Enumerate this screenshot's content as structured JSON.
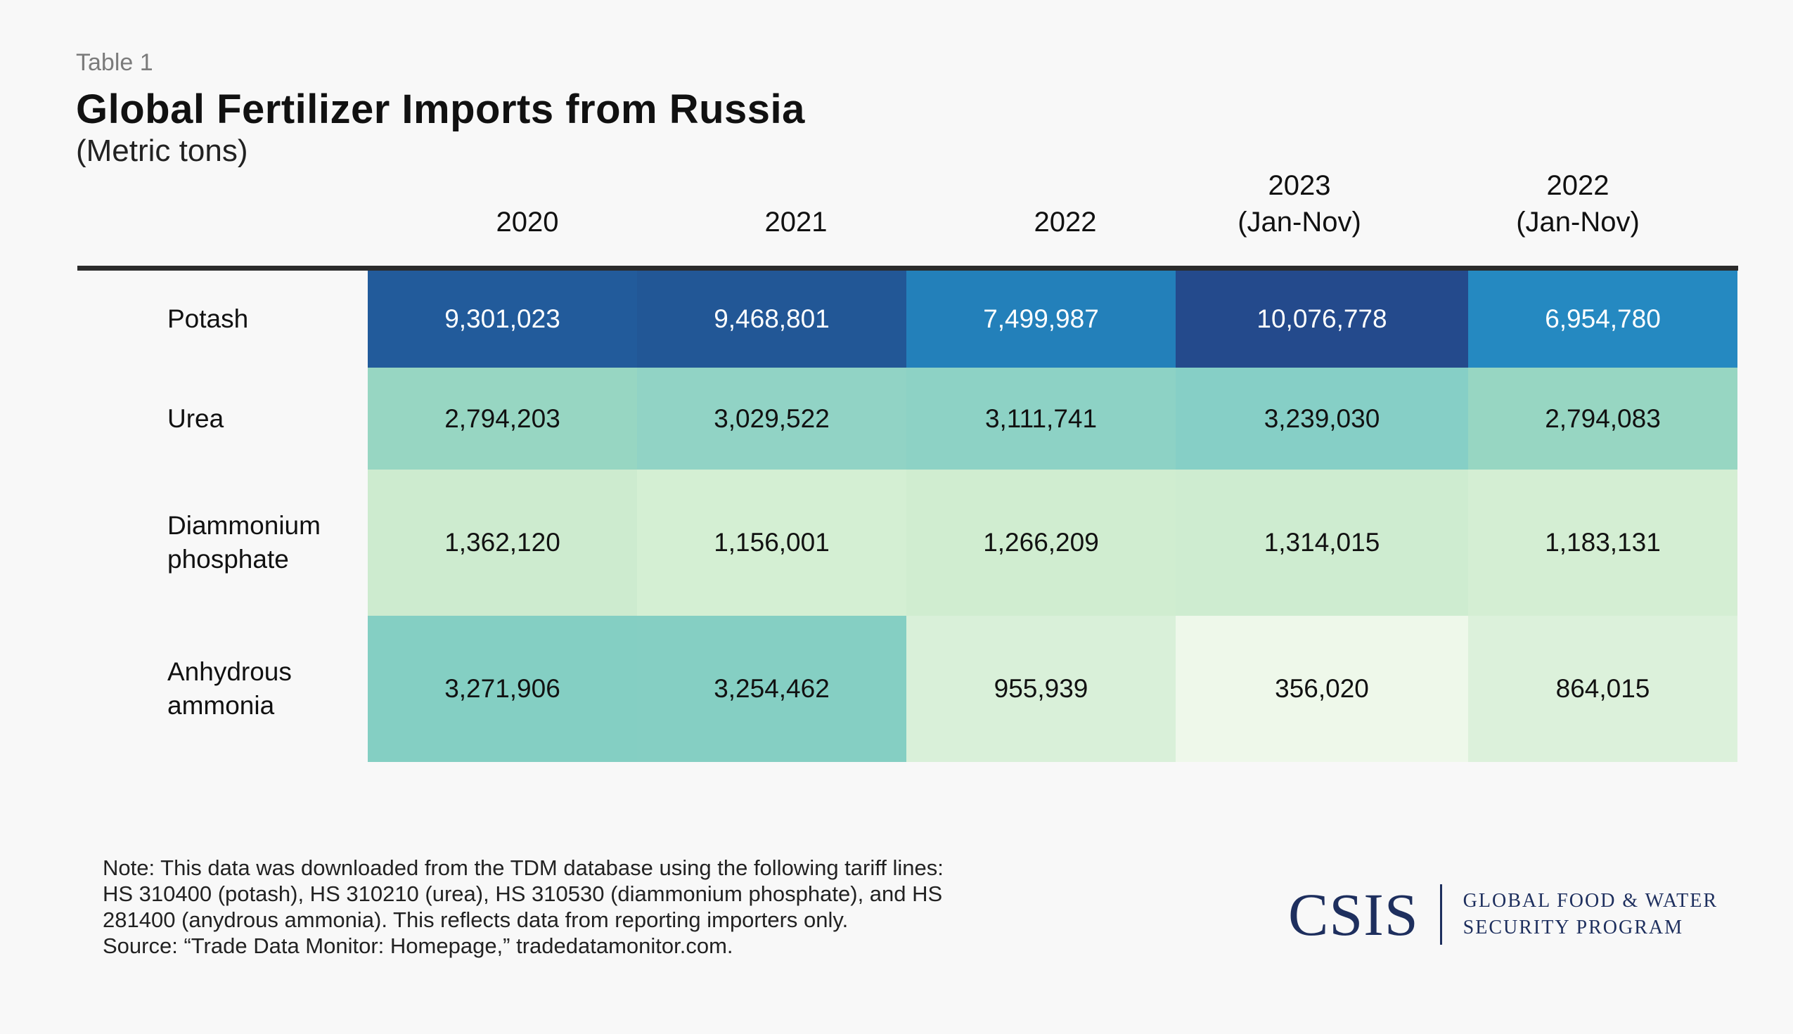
{
  "header": {
    "table_label": "Table 1",
    "title": "Global Fertilizer Imports from Russia",
    "subtitle": "(Metric tons)"
  },
  "chart_data": {
    "type": "table",
    "title": "Global Fertilizer Imports from Russia",
    "subtitle": "(Metric tons)",
    "columns": [
      {
        "line1": "",
        "line2": "2020"
      },
      {
        "line1": "",
        "line2": "2021"
      },
      {
        "line1": "",
        "line2": "2022"
      },
      {
        "line1": "2023",
        "line2": "(Jan-Nov)"
      },
      {
        "line1": "2022",
        "line2": "(Jan-Nov)"
      }
    ],
    "rows": [
      {
        "label": "Potash",
        "cells": [
          {
            "text": "9,301,023",
            "color": "#225b9b",
            "text_color": "#ffffff"
          },
          {
            "text": "9,468,801",
            "color": "#225796",
            "text_color": "#ffffff"
          },
          {
            "text": "7,499,987",
            "color": "#2380ba",
            "text_color": "#ffffff"
          },
          {
            "text": "10,076,778",
            "color": "#244a8c",
            "text_color": "#ffffff"
          },
          {
            "text": "6,954,780",
            "color": "#2589c1",
            "text_color": "#ffffff"
          }
        ]
      },
      {
        "label": "Urea",
        "cells": [
          {
            "text": "2,794,203",
            "color": "#97d6c2",
            "text_color": "#111111"
          },
          {
            "text": "3,029,522",
            "color": "#91d3c5",
            "text_color": "#111111"
          },
          {
            "text": "3,111,741",
            "color": "#8dd2c5",
            "text_color": "#111111"
          },
          {
            "text": "3,239,030",
            "color": "#86cfc6",
            "text_color": "#111111"
          },
          {
            "text": "2,794,083",
            "color": "#97d6c2",
            "text_color": "#111111"
          }
        ]
      },
      {
        "label": "Diammonium phosphate",
        "cells": [
          {
            "text": "1,362,120",
            "color": "#cdebcf",
            "text_color": "#111111"
          },
          {
            "text": "1,156,001",
            "color": "#d4efd3",
            "text_color": "#111111"
          },
          {
            "text": "1,266,209",
            "color": "#d0edd0",
            "text_color": "#111111"
          },
          {
            "text": "1,314,015",
            "color": "#ceecd0",
            "text_color": "#111111"
          },
          {
            "text": "1,183,131",
            "color": "#d4eed3",
            "text_color": "#111111"
          }
        ]
      },
      {
        "label": "Anhydrous ammonia",
        "cells": [
          {
            "text": "3,271,906",
            "color": "#84cfc3",
            "text_color": "#111111"
          },
          {
            "text": "3,254,462",
            "color": "#85cfc3",
            "text_color": "#111111"
          },
          {
            "text": "955,939",
            "color": "#d9f0d9",
            "text_color": "#111111"
          },
          {
            "text": "356,020",
            "color": "#eef8ea",
            "text_color": "#111111"
          },
          {
            "text": "864,015",
            "color": "#dcf1db",
            "text_color": "#111111"
          }
        ]
      }
    ],
    "values": [
      [
        9301023,
        9468801,
        7499987,
        10076778,
        6954780
      ],
      [
        2794203,
        3029522,
        3111741,
        3239030,
        2794083
      ],
      [
        1362120,
        1156001,
        1266209,
        1314015,
        1183131
      ],
      [
        3271906,
        3254462,
        955939,
        356020,
        864015
      ]
    ]
  },
  "note": {
    "lines": [
      "Note: This data was downloaded from the TDM database using the following tariff lines:",
      "HS 310400 (potash), HS 310210 (urea), HS 310530 (diammonium phosphate), and HS",
      "281400 (anydrous ammonia). This reflects data from reporting importers only.",
      "Source: “Trade Data Monitor: Homepage,” tradedatamonitor.com."
    ]
  },
  "logo": {
    "mark": "CSIS",
    "program_line1": "GLOBAL FOOD & WATER",
    "program_line2": "SECURITY PROGRAM"
  }
}
